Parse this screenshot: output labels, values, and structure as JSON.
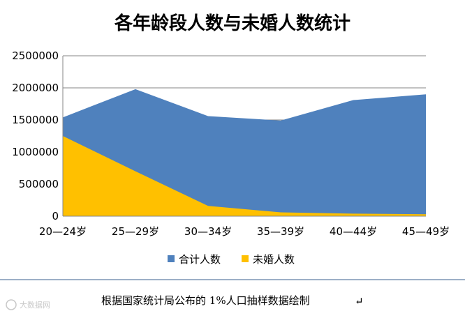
{
  "chart_data": {
    "type": "area",
    "title": "各年龄段人数与未婚人数统计",
    "categories": [
      "20—24岁",
      "25—29岁",
      "30—34岁",
      "35—39岁",
      "40—44岁",
      "45—49岁"
    ],
    "series": [
      {
        "name": "合计人数",
        "values": [
          1540000,
          1980000,
          1560000,
          1490000,
          1810000,
          1900000
        ],
        "color": "#4f81bd"
      },
      {
        "name": "未婚人数",
        "values": [
          1250000,
          700000,
          160000,
          60000,
          40000,
          30000
        ],
        "color": "#ffc000"
      }
    ],
    "ylim": [
      0,
      2500000
    ],
    "yticks": [
      "0",
      "500000",
      "1000000",
      "1500000",
      "2000000",
      "2500000"
    ],
    "grid": true,
    "legend_position": "bottom"
  },
  "caption": "根据国家统计局公布的 1%人口抽样数据绘制",
  "caption_mark": "↵",
  "watermark": "大数据网"
}
